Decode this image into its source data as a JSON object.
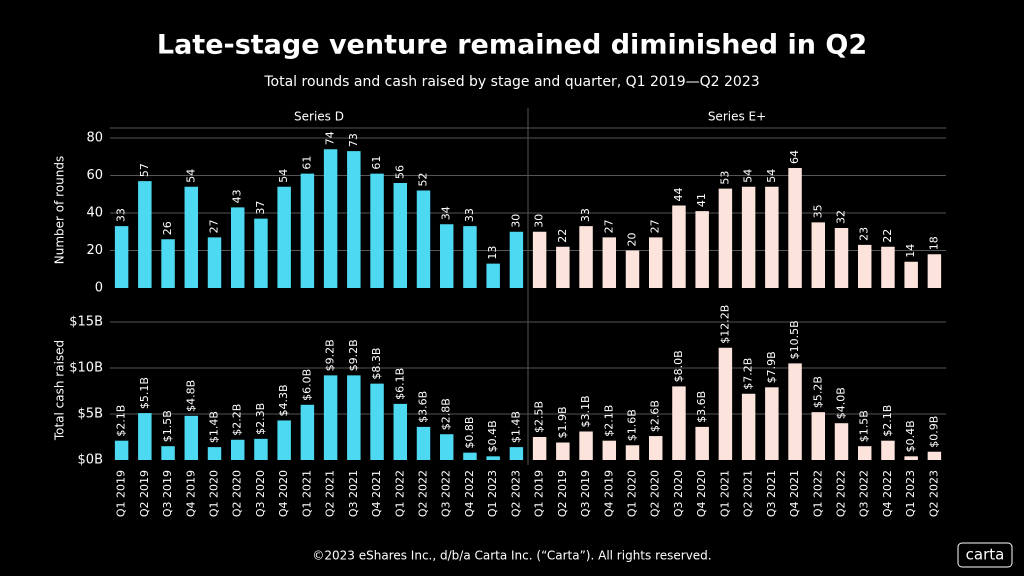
{
  "chart_data": {
    "type": "bar",
    "title": "Late-stage venture remained diminished in Q2",
    "subtitle": "Total rounds and cash raised by stage and quarter, Q1 2019—Q2 2023",
    "categories": [
      "Q1 2019",
      "Q2 2019",
      "Q3 2019",
      "Q4 2019",
      "Q1 2020",
      "Q2 2020",
      "Q3 2020",
      "Q4 2020",
      "Q1 2021",
      "Q2 2021",
      "Q3 2021",
      "Q4 2021",
      "Q1 2022",
      "Q2 2022",
      "Q3 2022",
      "Q4 2022",
      "Q1 2023",
      "Q2 2023"
    ],
    "ylabel": "Number of rounds",
    "ylim": [
      0,
      90
    ],
    "yticks": [
      0,
      20,
      40,
      60,
      80
    ],
    "y2label": "Total cash raised",
    "y2lim": [
      0,
      15
    ],
    "y2ticks": [
      {
        "value": 0,
        "label": "$0B"
      },
      {
        "value": 5,
        "label": "$5B"
      },
      {
        "value": 10,
        "label": "$10B"
      },
      {
        "value": 15,
        "label": "$15B"
      }
    ],
    "grid": true,
    "panels": [
      {
        "name": "Series D",
        "color": "#4dd9f2",
        "rounds": [
          33,
          57,
          26,
          54,
          27,
          43,
          37,
          54,
          61,
          74,
          73,
          61,
          56,
          52,
          34,
          33,
          13,
          30
        ],
        "cash": [
          2.1,
          5.1,
          1.5,
          4.8,
          1.4,
          2.2,
          2.3,
          4.3,
          6.0,
          9.2,
          9.2,
          8.3,
          6.1,
          3.6,
          2.8,
          0.8,
          0.4,
          1.4
        ],
        "value_labels": [
          "$2.1B",
          "$5.1B",
          "$1.5B",
          "$4.8B",
          "$1.4B",
          "$2.2B",
          "$2.3B",
          "$4.3B",
          "$6.0B",
          "$9.2B",
          "$9.2B",
          "$8.3B",
          "$6.1B",
          "$3.6B",
          "$2.8B",
          "$0.8B",
          "$0.4B",
          "$1.4B"
        ]
      },
      {
        "name": "Series E+",
        "color": "#fce4dc",
        "rounds": [
          30,
          22,
          33,
          27,
          20,
          27,
          44,
          41,
          53,
          54,
          54,
          64,
          35,
          32,
          23,
          22,
          14,
          18
        ],
        "cash": [
          2.5,
          1.9,
          3.1,
          2.1,
          1.6,
          2.6,
          8.0,
          3.6,
          12.2,
          7.2,
          7.9,
          10.5,
          5.2,
          4.0,
          1.5,
          2.1,
          0.4,
          0.9
        ],
        "value_labels": [
          "$2.5B",
          "$1.9B",
          "$3.1B",
          "$2.1B",
          "$1.6B",
          "$2.6B",
          "$8.0B",
          "$3.6B",
          "$12.2B",
          "$7.2B",
          "$7.9B",
          "$10.5B",
          "$5.2B",
          "$4.0B",
          "$1.5B",
          "$2.1B",
          "$0.4B",
          "$0.9B"
        ]
      }
    ]
  },
  "footer": "©2023 eShares Inc., d/b/a Carta Inc. (“Carta”). All rights reserved.",
  "logo": "carta"
}
